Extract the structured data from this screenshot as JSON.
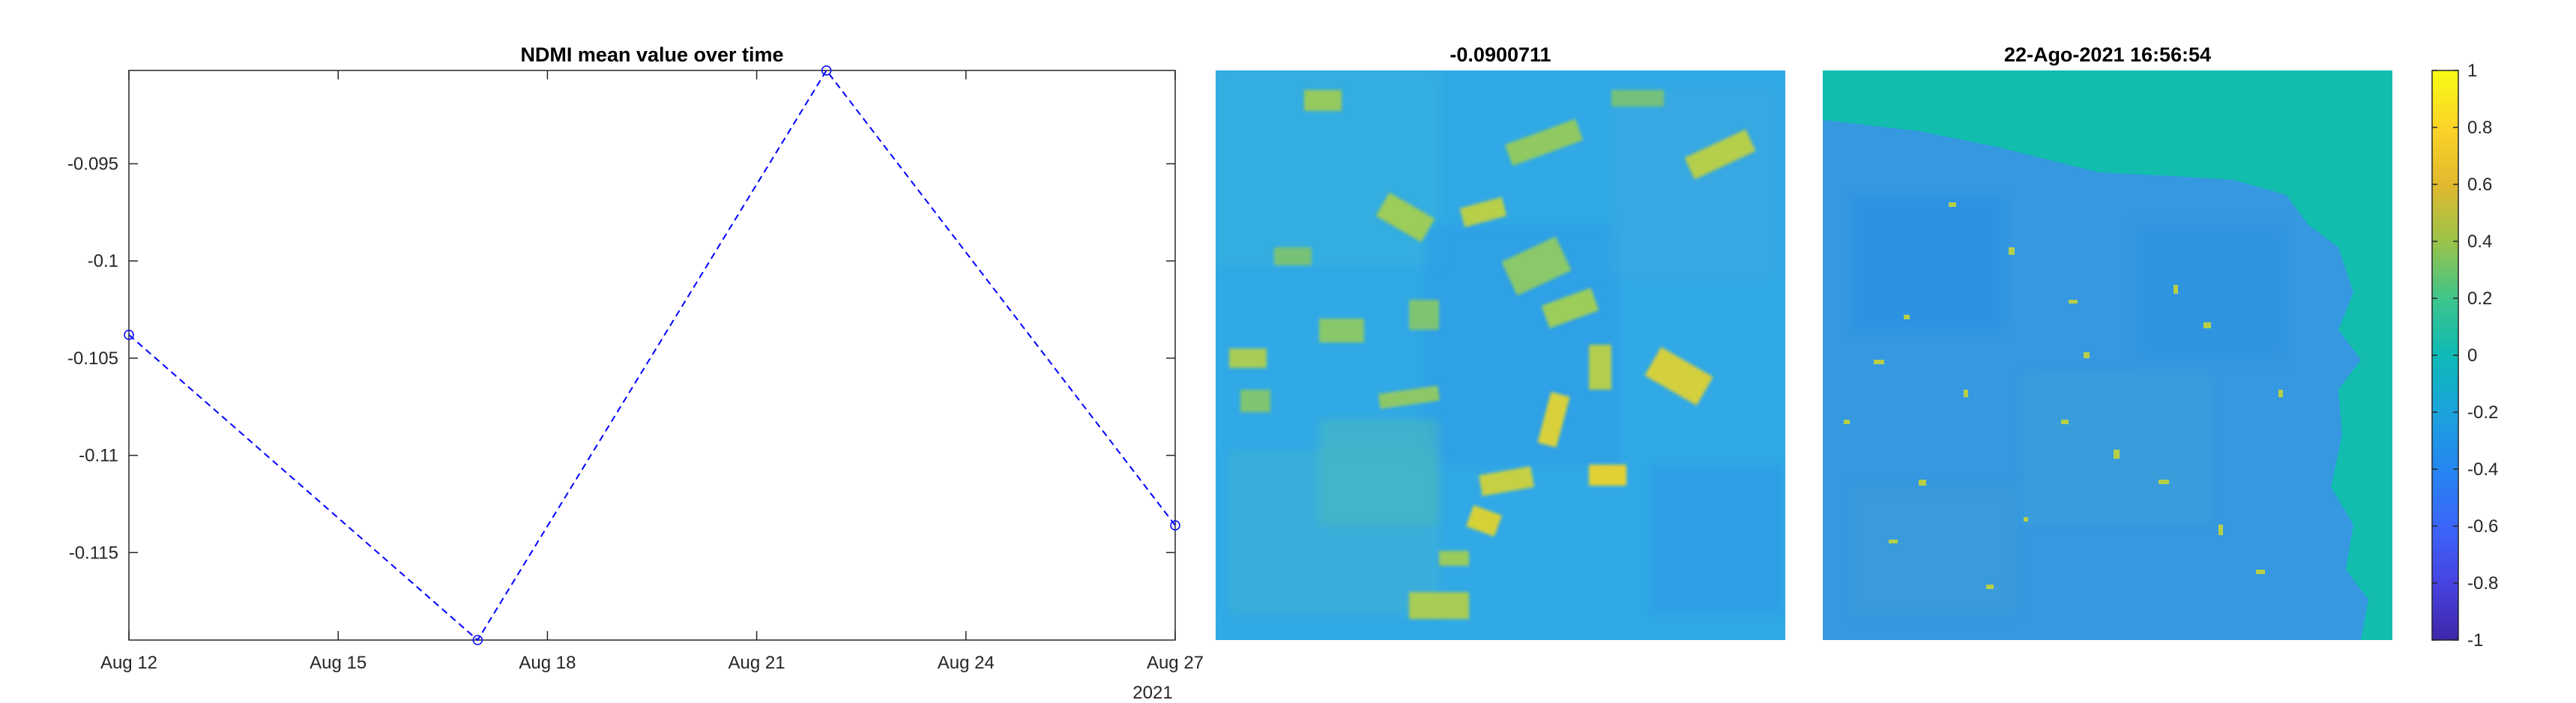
{
  "chart_data": [
    {
      "type": "line",
      "title": "NDMI mean value over time",
      "x": [
        "2021-08-12",
        "2021-08-17",
        "2021-08-22",
        "2021-08-27"
      ],
      "values": [
        -0.1038,
        -0.1195,
        -0.0902,
        -0.1136
      ],
      "x_ticks": [
        "Aug 12",
        "Aug 15",
        "Aug 18",
        "Aug 21",
        "Aug 24",
        "Aug 27"
      ],
      "x_tick_days": [
        12,
        15,
        18,
        21,
        24,
        27
      ],
      "x_secondary_label": "2021",
      "y_ticks": [
        -0.095,
        -0.1,
        -0.105,
        -0.11,
        -0.115
      ],
      "y_tick_labels": [
        "-0.095",
        "-0.1",
        "-0.105",
        "-0.11",
        "-0.115"
      ],
      "xlim": [
        "2021-08-12",
        "2021-08-27"
      ],
      "ylim": [
        -0.1195,
        -0.0902
      ],
      "line_color": "#0000ff",
      "line_style": "dashed",
      "marker": "circle",
      "grid": false
    },
    {
      "type": "heatmap",
      "title": "-0.0900711",
      "description_colors": [
        "#31a9e6",
        "#62c98a"
      ]
    },
    {
      "type": "heatmap",
      "title": "22-Ago-2021 16:56:54",
      "description_colors": [
        "#12bdae",
        "#3a97e2"
      ]
    }
  ],
  "colorbar": {
    "ticks": [
      1,
      0.8,
      0.6,
      0.4,
      0.2,
      0,
      -0.2,
      -0.4,
      -0.6,
      -0.8,
      -1
    ],
    "tick_labels": [
      "1",
      "0.8",
      "0.6",
      "0.4",
      "0.2",
      "0",
      "-0.2",
      "-0.4",
      "-0.6",
      "-0.8",
      "-1"
    ],
    "range": [
      -1,
      1
    ],
    "colormap": "parula"
  }
}
